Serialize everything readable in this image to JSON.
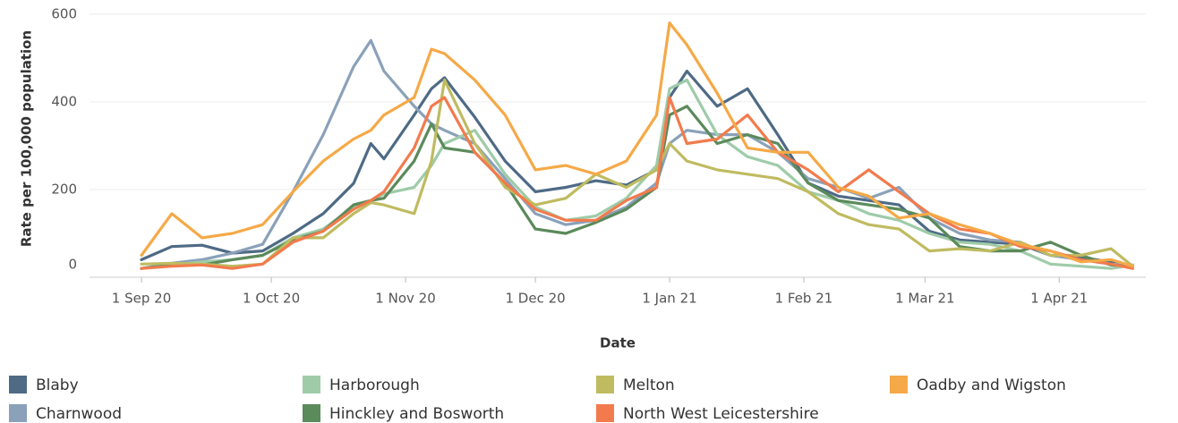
{
  "chart_data": {
    "type": "line",
    "x_label": "Date",
    "y_label": "Rate per 100,000 population",
    "x": [
      "2020-09-01",
      "2020-09-08",
      "2020-09-15",
      "2020-09-22",
      "2020-09-29",
      "2020-10-06",
      "2020-10-13",
      "2020-10-20",
      "2020-10-24",
      "2020-10-27",
      "2020-11-03",
      "2020-11-07",
      "2020-11-10",
      "2020-11-17",
      "2020-11-24",
      "2020-12-01",
      "2020-12-08",
      "2020-12-15",
      "2020-12-22",
      "2020-12-29",
      "2021-01-01",
      "2021-01-05",
      "2021-01-12",
      "2021-01-19",
      "2021-01-26",
      "2021-02-02",
      "2021-02-09",
      "2021-02-16",
      "2021-02-23",
      "2021-03-02",
      "2021-03-09",
      "2021-03-16",
      "2021-03-23",
      "2021-03-30",
      "2021-04-06",
      "2021-04-13",
      "2021-04-18"
    ],
    "xlim": [
      "2020-08-20",
      "2021-04-21"
    ],
    "xticks": [
      {
        "value": "2020-09-01",
        "label": "1 Sep 20"
      },
      {
        "value": "2020-10-01",
        "label": "1 Oct 20"
      },
      {
        "value": "2020-11-01",
        "label": "1 Nov 20"
      },
      {
        "value": "2020-12-01",
        "label": "1 Dec 20"
      },
      {
        "value": "2021-01-01",
        "label": "1 Jan 21"
      },
      {
        "value": "2021-02-01",
        "label": "1 Feb 21"
      },
      {
        "value": "2021-03-01",
        "label": "1 Mar 21"
      },
      {
        "value": "2021-04-01",
        "label": "1 Apr 21"
      }
    ],
    "ylim": [
      0,
      620
    ],
    "yticks": [
      0,
      200,
      400,
      600
    ],
    "grid": true,
    "legend": "bottom",
    "series": [
      {
        "name": "Blaby",
        "color": "#4e6a85",
        "values": [
          40,
          70,
          73,
          55,
          60,
          100,
          145,
          214,
          305,
          270,
          370,
          430,
          455,
          365,
          265,
          195,
          205,
          220,
          210,
          245,
          410,
          470,
          390,
          430,
          325,
          215,
          185,
          175,
          165,
          105,
          85,
          80,
          75,
          50,
          45,
          35,
          25
        ]
      },
      {
        "name": "Charnwood",
        "color": "#8aa1b9",
        "values": [
          20,
          32,
          40,
          55,
          75,
          195,
          325,
          480,
          540,
          470,
          390,
          350,
          335,
          305,
          225,
          145,
          120,
          130,
          160,
          215,
          305,
          335,
          325,
          325,
          285,
          225,
          205,
          180,
          205,
          135,
          100,
          85,
          80,
          50,
          40,
          30,
          28
        ]
      },
      {
        "name": "Harborough",
        "color": "#9fcba9",
        "values": [
          20,
          28,
          35,
          40,
          50,
          90,
          110,
          160,
          175,
          190,
          205,
          255,
          305,
          335,
          235,
          160,
          130,
          140,
          180,
          255,
          430,
          450,
          325,
          275,
          255,
          195,
          175,
          145,
          130,
          100,
          80,
          75,
          60,
          30,
          25,
          20,
          28
        ]
      },
      {
        "name": "Hinckley and Bosworth",
        "color": "#5b8a5b",
        "values": [
          20,
          28,
          28,
          40,
          50,
          85,
          105,
          165,
          175,
          180,
          265,
          350,
          295,
          285,
          215,
          110,
          100,
          125,
          155,
          205,
          370,
          390,
          305,
          325,
          305,
          215,
          175,
          165,
          155,
          135,
          70,
          60,
          60,
          80,
          50,
          28,
          25
        ]
      },
      {
        "name": "Melton",
        "color": "#bfbb60",
        "values": [
          30,
          32,
          30,
          25,
          30,
          90,
          90,
          145,
          170,
          165,
          145,
          265,
          450,
          305,
          205,
          165,
          180,
          235,
          205,
          245,
          305,
          265,
          245,
          235,
          225,
          195,
          145,
          120,
          110,
          60,
          65,
          60,
          80,
          50,
          50,
          65,
          25
        ]
      },
      {
        "name": "North West Leicestershire",
        "color": "#f27b4d",
        "values": [
          20,
          25,
          28,
          20,
          30,
          80,
          105,
          155,
          175,
          195,
          295,
          390,
          410,
          285,
          215,
          155,
          130,
          130,
          175,
          205,
          410,
          305,
          315,
          370,
          285,
          245,
          195,
          245,
          195,
          145,
          110,
          100,
          70,
          60,
          40,
          30,
          20
        ]
      },
      {
        "name": "Oadby and Wigston",
        "color": "#f5a947",
        "values": [
          50,
          145,
          90,
          100,
          120,
          195,
          265,
          315,
          335,
          370,
          410,
          520,
          510,
          450,
          370,
          245,
          255,
          235,
          265,
          370,
          580,
          530,
          420,
          295,
          285,
          285,
          205,
          185,
          135,
          145,
          120,
          100,
          75,
          60,
          35,
          40,
          25
        ]
      }
    ]
  }
}
